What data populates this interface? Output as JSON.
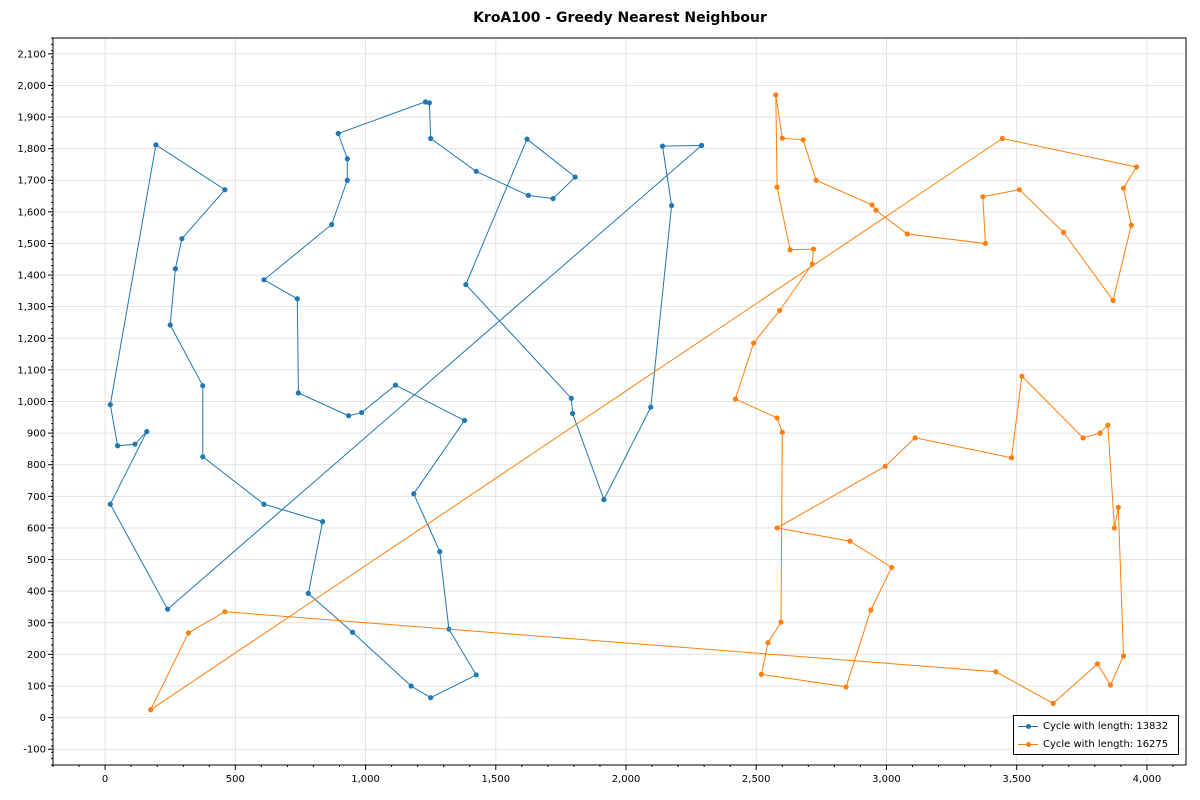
{
  "chart_data": {
    "type": "line",
    "title": "KroA100 - Greedy Nearest Neighbour",
    "xlabel": "",
    "ylabel": "",
    "xlim": [
      -200,
      4150
    ],
    "ylim": [
      -150,
      2150
    ],
    "grid": true,
    "legend_position": "bottom-right",
    "x_ticks": [
      0,
      500,
      1000,
      1500,
      2000,
      2500,
      3000,
      3500,
      4000
    ],
    "x_tick_labels": [
      "0",
      "500",
      "1,000",
      "1,500",
      "2,000",
      "2,500",
      "3,000",
      "3,500",
      "4,000"
    ],
    "y_ticks": [
      -100,
      0,
      100,
      200,
      300,
      400,
      500,
      600,
      700,
      800,
      900,
      1000,
      1100,
      1200,
      1300,
      1400,
      1500,
      1600,
      1700,
      1800,
      1900,
      2000,
      2100
    ],
    "y_tick_labels": [
      "-100",
      "0",
      "100",
      "200",
      "300",
      "400",
      "500",
      "600",
      "700",
      "800",
      "900",
      "1,000",
      "1,100",
      "1,200",
      "1,300",
      "1,400",
      "1,500",
      "1,600",
      "1,700",
      "1,800",
      "1,900",
      "2,000",
      "2,100"
    ],
    "series": [
      {
        "name": "Cycle with length: 13832",
        "color": "#1f77b4",
        "points": [
          [
            2290,
            1810
          ],
          [
            2140,
            1808
          ],
          [
            2175,
            1620
          ],
          [
            2095,
            982
          ],
          [
            1915,
            690
          ],
          [
            1795,
            962
          ],
          [
            1790,
            1010
          ],
          [
            1385,
            1370
          ],
          [
            1620,
            1830
          ],
          [
            1805,
            1710
          ],
          [
            1720,
            1642
          ],
          [
            1625,
            1652
          ],
          [
            1425,
            1728
          ],
          [
            1250,
            1832
          ],
          [
            1245,
            1945
          ],
          [
            1230,
            1948
          ],
          [
            895,
            1848
          ],
          [
            930,
            1768
          ],
          [
            930,
            1700
          ],
          [
            870,
            1560
          ],
          [
            610,
            1385
          ],
          [
            738,
            1325
          ],
          [
            742,
            1027
          ],
          [
            935,
            955
          ],
          [
            985,
            965
          ],
          [
            1115,
            1052
          ],
          [
            1380,
            940
          ],
          [
            1185,
            708
          ],
          [
            1285,
            525
          ],
          [
            1320,
            280
          ],
          [
            1425,
            135
          ],
          [
            1250,
            63
          ],
          [
            1175,
            100
          ],
          [
            950,
            270
          ],
          [
            780,
            393
          ],
          [
            835,
            620
          ],
          [
            610,
            675
          ],
          [
            375,
            825
          ],
          [
            375,
            1050
          ],
          [
            250,
            1242
          ],
          [
            270,
            1420
          ],
          [
            295,
            1515
          ],
          [
            460,
            1670
          ],
          [
            195,
            1812
          ],
          [
            20,
            990
          ],
          [
            48,
            860
          ],
          [
            115,
            865
          ],
          [
            160,
            905
          ],
          [
            20,
            675
          ],
          [
            240,
            343
          ],
          [
            2290,
            1810
          ]
        ]
      },
      {
        "name": "Cycle with length: 16275",
        "color": "#ff7f0e",
        "points": [
          [
            175,
            25
          ],
          [
            320,
            268
          ],
          [
            460,
            335
          ],
          [
            3420,
            145
          ],
          [
            3640,
            45
          ],
          [
            3810,
            170
          ],
          [
            3860,
            103
          ],
          [
            3910,
            195
          ],
          [
            3890,
            665
          ],
          [
            3875,
            600
          ],
          [
            3850,
            925
          ],
          [
            3820,
            900
          ],
          [
            3755,
            885
          ],
          [
            3520,
            1080
          ],
          [
            3480,
            822
          ],
          [
            3110,
            885
          ],
          [
            2995,
            795
          ],
          [
            2580,
            600
          ],
          [
            2860,
            558
          ],
          [
            3020,
            475
          ],
          [
            2940,
            340
          ],
          [
            2845,
            97
          ],
          [
            2520,
            137
          ],
          [
            2545,
            237
          ],
          [
            2595,
            302
          ],
          [
            2600,
            903
          ],
          [
            2580,
            948
          ],
          [
            2420,
            1008
          ],
          [
            2490,
            1185
          ],
          [
            2590,
            1288
          ],
          [
            2715,
            1435
          ],
          [
            2720,
            1482
          ],
          [
            2630,
            1480
          ],
          [
            2580,
            1678
          ],
          [
            2575,
            1970
          ],
          [
            2600,
            1833
          ],
          [
            2680,
            1828
          ],
          [
            2730,
            1700
          ],
          [
            2945,
            1622
          ],
          [
            2960,
            1605
          ],
          [
            3080,
            1530
          ],
          [
            3380,
            1500
          ],
          [
            3370,
            1648
          ],
          [
            3510,
            1670
          ],
          [
            3680,
            1535
          ],
          [
            3870,
            1320
          ],
          [
            3940,
            1558
          ],
          [
            3910,
            1675
          ],
          [
            3960,
            1742
          ],
          [
            3445,
            1832
          ],
          [
            175,
            25
          ]
        ]
      }
    ]
  }
}
